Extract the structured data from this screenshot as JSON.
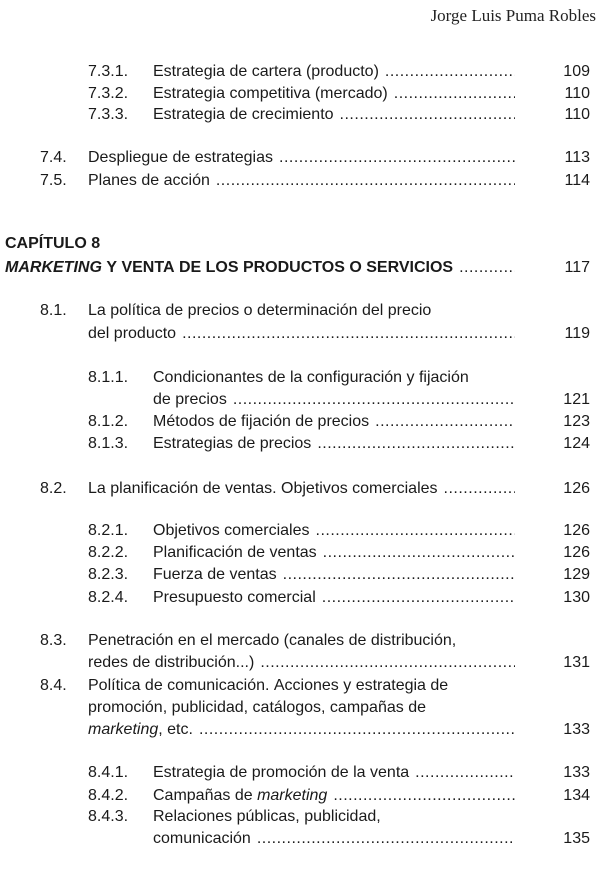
{
  "header": {
    "author": "Jorge Luis Puma Robles"
  },
  "entries": [
    {
      "num": "7.3.1.",
      "lines": [
        [
          {
            "t": "Estrategia de cartera (producto)"
          }
        ]
      ],
      "page": "109"
    },
    {
      "num": "7.3.2.",
      "lines": [
        [
          {
            "t": "Estrategia competitiva (mercado)"
          }
        ]
      ],
      "page": "110"
    },
    {
      "num": "7.3.3.",
      "lines": [
        [
          {
            "t": "Estrategia de crecimiento"
          }
        ]
      ],
      "page": "110"
    },
    {
      "num": "7.4.",
      "lines": [
        [
          {
            "t": "Despliegue de estrategias"
          }
        ]
      ],
      "page": "113"
    },
    {
      "num": "7.5.",
      "lines": [
        [
          {
            "t": "Planes de acción"
          }
        ]
      ],
      "page": "114"
    },
    {
      "num": "",
      "chapter": true,
      "lines": [
        [
          {
            "t": "CAPÍTULO 8"
          }
        ],
        [
          {
            "t": "MARKETING",
            "i": true
          },
          {
            "t": " Y VENTA DE LOS PRODUCTOS O SERVICIOS"
          }
        ]
      ],
      "page": "117"
    },
    {
      "num": "8.1.",
      "lines": [
        [
          {
            "t": "La política de precios o determinación del precio"
          }
        ],
        [
          {
            "t": "del producto"
          }
        ]
      ],
      "page": "119"
    },
    {
      "num": "8.1.1.",
      "lines": [
        [
          {
            "t": "Condicionantes de la configuración y fijación"
          }
        ],
        [
          {
            "t": "de precios"
          }
        ]
      ],
      "page": "121"
    },
    {
      "num": "8.1.2.",
      "lines": [
        [
          {
            "t": "Métodos de fijación de precios"
          }
        ]
      ],
      "page": "123"
    },
    {
      "num": "8.1.3.",
      "lines": [
        [
          {
            "t": "Estrategias de precios"
          }
        ]
      ],
      "page": "124"
    },
    {
      "num": "8.2.",
      "lines": [
        [
          {
            "t": "La planificación de ventas. Objetivos comerciales"
          }
        ]
      ],
      "page": "126"
    },
    {
      "num": "8.2.1.",
      "lines": [
        [
          {
            "t": "Objetivos comerciales"
          }
        ]
      ],
      "page": "126"
    },
    {
      "num": "8.2.2.",
      "lines": [
        [
          {
            "t": "Planificación de ventas"
          }
        ]
      ],
      "page": "126"
    },
    {
      "num": "8.2.3.",
      "lines": [
        [
          {
            "t": "Fuerza de ventas"
          }
        ]
      ],
      "page": "129"
    },
    {
      "num": "8.2.4.",
      "lines": [
        [
          {
            "t": "Presupuesto comercial"
          }
        ]
      ],
      "page": "130"
    },
    {
      "num": "8.3.",
      "lines": [
        [
          {
            "t": "Penetración en el mercado (canales de distribución,"
          }
        ],
        [
          {
            "t": "redes de distribución...)"
          }
        ]
      ],
      "page": "131"
    },
    {
      "num": "8.4.",
      "lines": [
        [
          {
            "t": "Política de comunicación. Acciones y estrategia de"
          }
        ],
        [
          {
            "t": "promoción, publicidad, catálogos, campañas de"
          }
        ],
        [
          {
            "t": "marketing",
            "i": true
          },
          {
            "t": ", etc."
          }
        ]
      ],
      "page": "133"
    },
    {
      "num": "8.4.1.",
      "lines": [
        [
          {
            "t": "Estrategia de promoción de la venta"
          }
        ]
      ],
      "page": "133"
    },
    {
      "num": "8.4.2.",
      "lines": [
        [
          {
            "t": "Campañas de "
          },
          {
            "t": "marketing",
            "i": true
          }
        ]
      ],
      "page": "134"
    },
    {
      "num": "8.4.3.",
      "lines": [
        [
          {
            "t": "Relaciones públicas, publicidad,"
          }
        ],
        [
          {
            "t": "comunicación"
          }
        ]
      ],
      "page": "135"
    }
  ]
}
